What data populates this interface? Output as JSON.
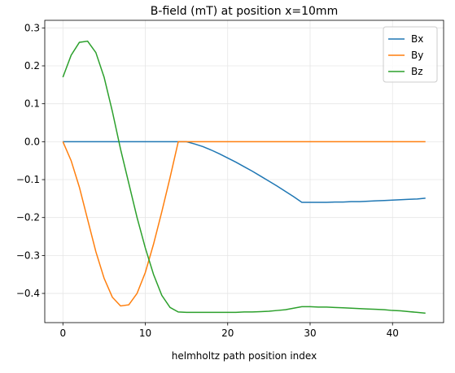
{
  "chart_data": {
    "type": "line",
    "title": "B-field (mT) at position x=10mm",
    "xlabel": "helmholtz path position index",
    "x": [
      0,
      1,
      2,
      3,
      4,
      5,
      6,
      7,
      8,
      9,
      10,
      11,
      12,
      13,
      14,
      15,
      16,
      17,
      18,
      19,
      20,
      21,
      22,
      23,
      24,
      25,
      26,
      27,
      28,
      29,
      30,
      31,
      32,
      33,
      34,
      35,
      36,
      37,
      38,
      39,
      40,
      41,
      42,
      43,
      44
    ],
    "series": [
      {
        "name": "Bx",
        "color": "#1f77b4",
        "values": [
          0,
          0,
          0,
          0,
          0,
          0,
          0,
          0,
          0,
          0,
          0,
          0,
          0,
          0,
          0,
          0,
          -0.006,
          -0.013,
          -0.022,
          -0.032,
          -0.043,
          -0.054,
          -0.066,
          -0.078,
          -0.091,
          -0.104,
          -0.117,
          -0.131,
          -0.145,
          -0.16,
          -0.16,
          -0.16,
          -0.16,
          -0.159,
          -0.159,
          -0.158,
          -0.158,
          -0.157,
          -0.156,
          -0.155,
          -0.154,
          -0.153,
          -0.152,
          -0.151,
          -0.149
        ]
      },
      {
        "name": "By",
        "color": "#ff7f0e",
        "values": [
          0,
          -0.05,
          -0.12,
          -0.205,
          -0.29,
          -0.36,
          -0.41,
          -0.433,
          -0.43,
          -0.4,
          -0.345,
          -0.27,
          -0.185,
          -0.095,
          0,
          0,
          0,
          0,
          0,
          0,
          0,
          0,
          0,
          0,
          0,
          0,
          0,
          0,
          0,
          0,
          0,
          0,
          0,
          0,
          0,
          0,
          0,
          0,
          0,
          0,
          0,
          0,
          0,
          0,
          0
        ]
      },
      {
        "name": "Bz",
        "color": "#2ca02c",
        "values": [
          0.17,
          0.228,
          0.262,
          0.265,
          0.235,
          0.17,
          0.08,
          -0.02,
          -0.11,
          -0.2,
          -0.28,
          -0.35,
          -0.405,
          -0.437,
          -0.449,
          -0.45,
          -0.45,
          -0.45,
          -0.45,
          -0.45,
          -0.45,
          -0.45,
          -0.449,
          -0.449,
          -0.448,
          -0.447,
          -0.445,
          -0.443,
          -0.439,
          -0.435,
          -0.435,
          -0.436,
          -0.436,
          -0.437,
          -0.438,
          -0.439,
          -0.44,
          -0.441,
          -0.442,
          -0.443,
          -0.445,
          -0.446,
          -0.448,
          -0.45,
          -0.452
        ]
      }
    ],
    "xlim": [
      -2.2,
      46.2
    ],
    "ylim": [
      -0.477,
      0.32
    ],
    "xticks": [
      0,
      10,
      20,
      30,
      40
    ],
    "yticks": [
      0.3,
      0.2,
      0.1,
      {
        "value": 0,
        "label": "0.0"
      },
      {
        "value": -0.1,
        "label": "−0.1"
      },
      {
        "value": -0.2,
        "label": "−0.2"
      },
      {
        "value": -0.3,
        "label": "−0.3"
      },
      {
        "value": -0.4,
        "label": "−0.4"
      }
    ],
    "grid": true,
    "legend": "upper-right"
  }
}
